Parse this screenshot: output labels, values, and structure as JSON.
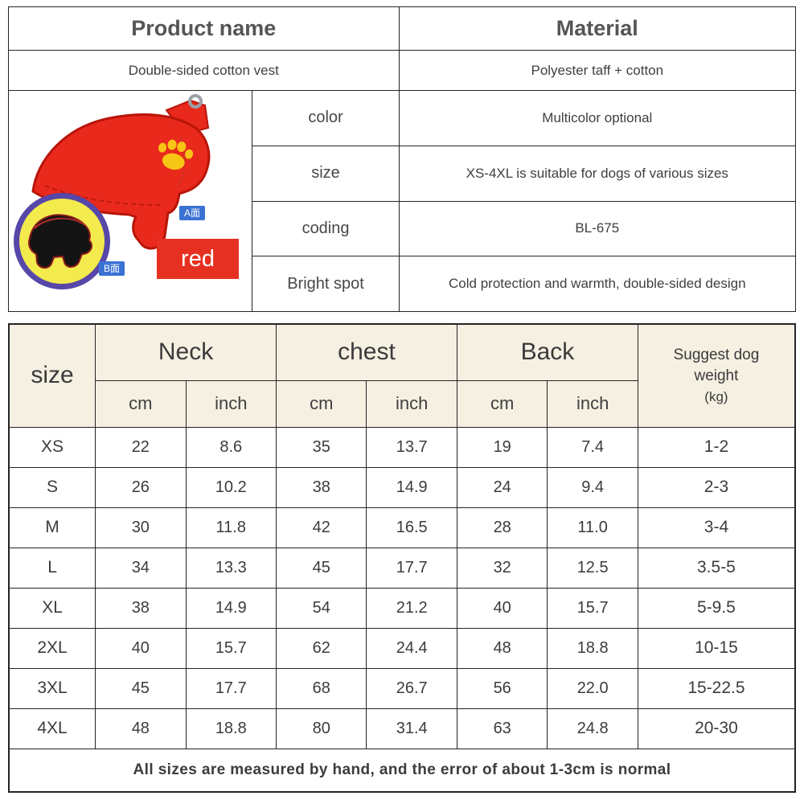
{
  "product_info": {
    "headers": {
      "product_name": "Product name",
      "material": "Material"
    },
    "values": {
      "product_name": "Double-sided cotton vest",
      "material": "Polyester taff + cotton"
    },
    "spec_rows": [
      {
        "label": "color",
        "value": "Multicolor optional"
      },
      {
        "label": "size",
        "value": "XS-4XL is suitable for dogs of various sizes"
      },
      {
        "label": "coding",
        "value": "BL-675"
      },
      {
        "label": "Bright spot",
        "value": "Cold protection and warmth, double-sided design"
      }
    ]
  },
  "product_image": {
    "side_a_tag": "A面",
    "side_b_tag": "B面",
    "color_swatch_label": "red",
    "colors": {
      "vest_red": "#e8291c",
      "vest_outline": "#b81508",
      "paw_yellow": "#f7c515",
      "inset_ring_purple": "#5747a8",
      "inset_yellow": "#f3ea4d",
      "tag_blue": "#3a72d4",
      "swatch_red": "#e63122"
    }
  },
  "size_table": {
    "size_header": "size",
    "group_headers": [
      "Neck",
      "chest",
      "Back"
    ],
    "unit_headers": [
      "cm",
      "inch",
      "cm",
      "inch",
      "cm",
      "inch"
    ],
    "weight_header": "Suggest dog weight",
    "weight_unit": "(kg)",
    "header_bg": "#f6f0e3",
    "rows": [
      {
        "size": "XS",
        "values": [
          "22",
          "8.6",
          "35",
          "13.7",
          "19",
          "7.4",
          "1-2"
        ]
      },
      {
        "size": "S",
        "values": [
          "26",
          "10.2",
          "38",
          "14.9",
          "24",
          "9.4",
          "2-3"
        ]
      },
      {
        "size": "M",
        "values": [
          "30",
          "11.8",
          "42",
          "16.5",
          "28",
          "11.0",
          "3-4"
        ]
      },
      {
        "size": "L",
        "values": [
          "34",
          "13.3",
          "45",
          "17.7",
          "32",
          "12.5",
          "3.5-5"
        ]
      },
      {
        "size": "XL",
        "values": [
          "38",
          "14.9",
          "54",
          "21.2",
          "40",
          "15.7",
          "5-9.5"
        ]
      },
      {
        "size": "2XL",
        "values": [
          "40",
          "15.7",
          "62",
          "24.4",
          "48",
          "18.8",
          "10-15"
        ]
      },
      {
        "size": "3XL",
        "values": [
          "45",
          "17.7",
          "68",
          "26.7",
          "56",
          "22.0",
          "15-22.5"
        ]
      },
      {
        "size": "4XL",
        "values": [
          "48",
          "18.8",
          "80",
          "31.4",
          "63",
          "24.8",
          "20-30"
        ]
      }
    ],
    "footnote": "All sizes are measured by hand, and the error of about 1-3cm is normal"
  }
}
